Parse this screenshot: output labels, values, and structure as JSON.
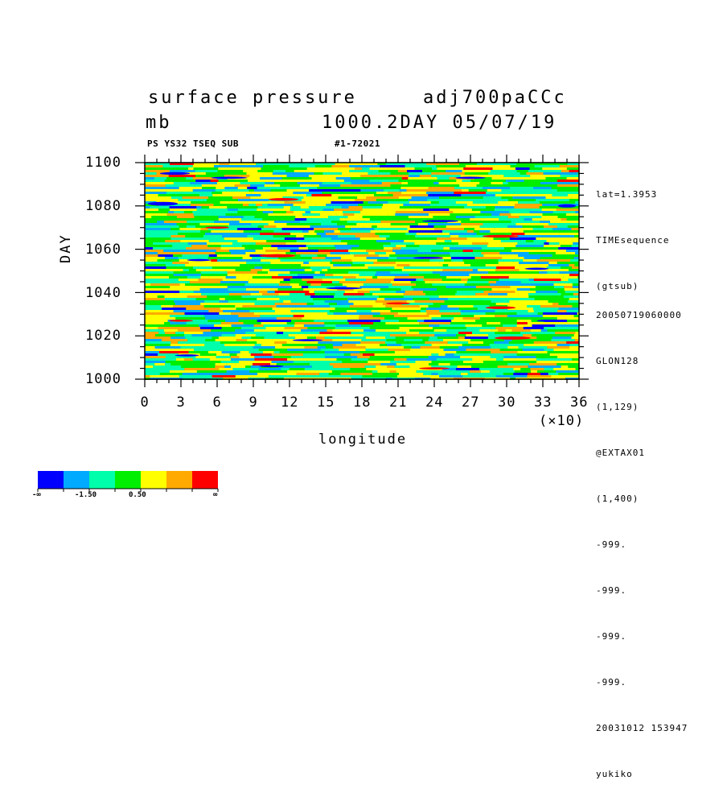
{
  "header": {
    "title": "surface pressure",
    "run": "adj700paCCc",
    "unit": "mb",
    "dayinfo": "1000.2DAY 05/07/19",
    "sub_left": "PS YS32 TSEQ SUB",
    "sub_mid": "#1-72021"
  },
  "side_info": {
    "top": [
      "lat=1.3953",
      "TIMEsequence",
      "(gtsub)"
    ],
    "bottom": [
      "20050719060000",
      "GLON128",
      "(1,129)",
      "@EXTAX01",
      "(1,400)",
      "-999.",
      "-999.",
      "-999.",
      "-999.",
      "20031012 153947",
      "yukiko"
    ]
  },
  "chart_data": {
    "type": "heatmap",
    "xlabel": "longitude",
    "ylabel": "DAY",
    "x_multiplier": "(×10)",
    "xlim": [
      0,
      36
    ],
    "ylim": [
      1000,
      1100
    ],
    "x_ticks": [
      "0",
      "3",
      "6",
      "9",
      "12",
      "15",
      "18",
      "21",
      "24",
      "27",
      "30",
      "33",
      "36"
    ],
    "y_ticks": [
      "1000",
      "1020",
      "1040",
      "1060",
      "1080",
      "1100"
    ],
    "colorbar": {
      "colors": [
        "#0000ff",
        "#00aaff",
        "#00ffaa",
        "#00ee00",
        "#ffff00",
        "#ffaa00",
        "#ff0000"
      ],
      "labels": [
        "-∞",
        "-1.50",
        "0.50",
        "∞"
      ]
    },
    "features": [
      {
        "kind": "blue",
        "x": 2.5,
        "y": 1095,
        "w": 2.5,
        "h": 1.3
      },
      {
        "kind": "blue",
        "x": 1.5,
        "y": 1081,
        "w": 2.5,
        "h": 1.8
      },
      {
        "kind": "blue",
        "x": 7.0,
        "y": 1093,
        "w": 3.0,
        "h": 1.0
      },
      {
        "kind": "blue",
        "x": 27.0,
        "y": 1093,
        "w": 2.5,
        "h": 1.0
      },
      {
        "kind": "blue",
        "x": 35.0,
        "y": 1080,
        "w": 1.5,
        "h": 1.5
      },
      {
        "kind": "blue",
        "x": 24.5,
        "y": 1073,
        "w": 3.0,
        "h": 1.0
      },
      {
        "kind": "blue",
        "x": 4.5,
        "y": 1055,
        "w": 2.0,
        "h": 1.0
      },
      {
        "kind": "blue",
        "x": 23.5,
        "y": 1056,
        "w": 2.5,
        "h": 1.0
      },
      {
        "kind": "blue",
        "x": 32.5,
        "y": 1051,
        "w": 2.0,
        "h": 1.0
      },
      {
        "kind": "blue",
        "x": 16.5,
        "y": 1042,
        "w": 3.0,
        "h": 1.0
      },
      {
        "kind": "blue",
        "x": 3.5,
        "y": 1011,
        "w": 2.0,
        "h": 1.0
      },
      {
        "kind": "blue",
        "x": 13.5,
        "y": 1018,
        "w": 2.5,
        "h": 1.0
      },
      {
        "kind": "blue",
        "x": 33.5,
        "y": 1027,
        "w": 2.0,
        "h": 1.0
      },
      {
        "kind": "blue",
        "x": 10.5,
        "y": 1006,
        "w": 2.0,
        "h": 1.0
      },
      {
        "kind": "red",
        "x": 11.0,
        "y": 1057,
        "w": 3.0,
        "h": 1.5
      },
      {
        "kind": "red",
        "x": 11.5,
        "y": 1083,
        "w": 2.5,
        "h": 1.3
      },
      {
        "kind": "red",
        "x": 6.0,
        "y": 1070,
        "w": 2.0,
        "h": 1.0
      },
      {
        "kind": "red",
        "x": 29.5,
        "y": 1066,
        "w": 3.0,
        "h": 1.3
      },
      {
        "kind": "red",
        "x": 29.5,
        "y": 1033,
        "w": 2.5,
        "h": 1.3
      },
      {
        "kind": "red",
        "x": 30.5,
        "y": 1019,
        "w": 3.0,
        "h": 1.5
      },
      {
        "kind": "red",
        "x": 24.0,
        "y": 1005,
        "w": 2.5,
        "h": 1.0
      },
      {
        "kind": "red",
        "x": 21.0,
        "y": 1035,
        "w": 2.0,
        "h": 1.0
      },
      {
        "kind": "red",
        "x": 3.0,
        "y": 1027,
        "w": 2.0,
        "h": 1.0
      }
    ]
  }
}
